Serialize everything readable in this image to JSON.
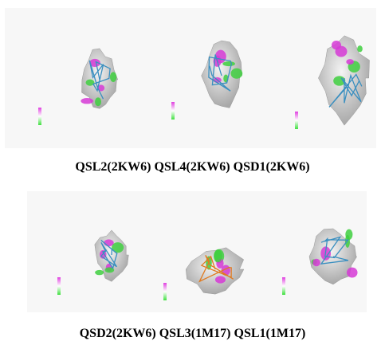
{
  "panels": [
    {
      "labels": [
        "QSL2(2KW6)",
        "QSL4(2KW6)",
        "QSD1(2KW6)"
      ]
    },
    {
      "labels": [
        "QSD2(2KW6)",
        "QSL3(1M17)",
        "QSL1(1M17)"
      ]
    }
  ]
}
